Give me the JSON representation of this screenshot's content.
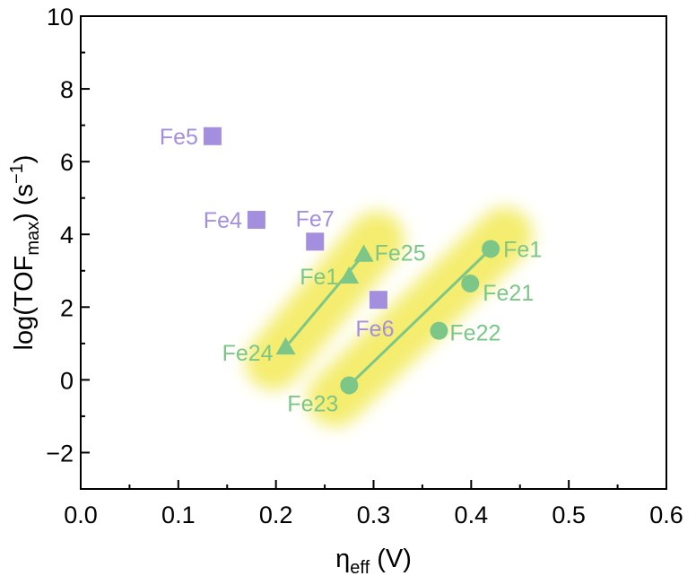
{
  "chart_data": {
    "type": "scatter",
    "xlabel": {
      "base": "η",
      "sub": "eff",
      "unit": " (V)"
    },
    "ylabel": {
      "prefix": "log(TOF",
      "sub": "max",
      "mid": ") (s",
      "sup": "−1",
      "suffix": ")"
    },
    "xlim": [
      0.0,
      0.6
    ],
    "ylim": [
      -3,
      10
    ],
    "xticks": [
      "0.0",
      "0.1",
      "0.2",
      "0.3",
      "0.4",
      "0.5",
      "0.6"
    ],
    "yticks": [
      "−2",
      "0",
      "2",
      "4",
      "6",
      "8",
      "10"
    ],
    "grid": false,
    "colors": {
      "square": "#a48fde",
      "square_label": "#a48fde",
      "green": "#7cc687",
      "green_label": "#7cc687",
      "glow": "#f3ea55"
    },
    "series": [
      {
        "marker": "square",
        "points": [
          {
            "label": "Fe5",
            "x": 0.135,
            "y": 6.7
          },
          {
            "label": "Fe4",
            "x": 0.18,
            "y": 4.4
          },
          {
            "label": "Fe7",
            "x": 0.24,
            "y": 3.8
          },
          {
            "label": "Fe6",
            "x": 0.305,
            "y": 2.2
          }
        ]
      },
      {
        "marker": "triangle",
        "fit_line": true,
        "points": [
          {
            "label": "Fe24",
            "x": 0.21,
            "y": 0.9
          },
          {
            "label": "Fe1",
            "x": 0.275,
            "y": 2.85
          },
          {
            "label": "Fe25",
            "x": 0.29,
            "y": 3.45
          }
        ]
      },
      {
        "marker": "circle",
        "fit_line": true,
        "points": [
          {
            "label": "Fe23",
            "x": 0.275,
            "y": -0.15
          },
          {
            "label": "Fe22",
            "x": 0.367,
            "y": 1.35
          },
          {
            "label": "Fe21",
            "x": 0.399,
            "y": 2.65
          },
          {
            "label": "Fe1",
            "x": 0.42,
            "y": 3.6
          }
        ]
      }
    ]
  }
}
